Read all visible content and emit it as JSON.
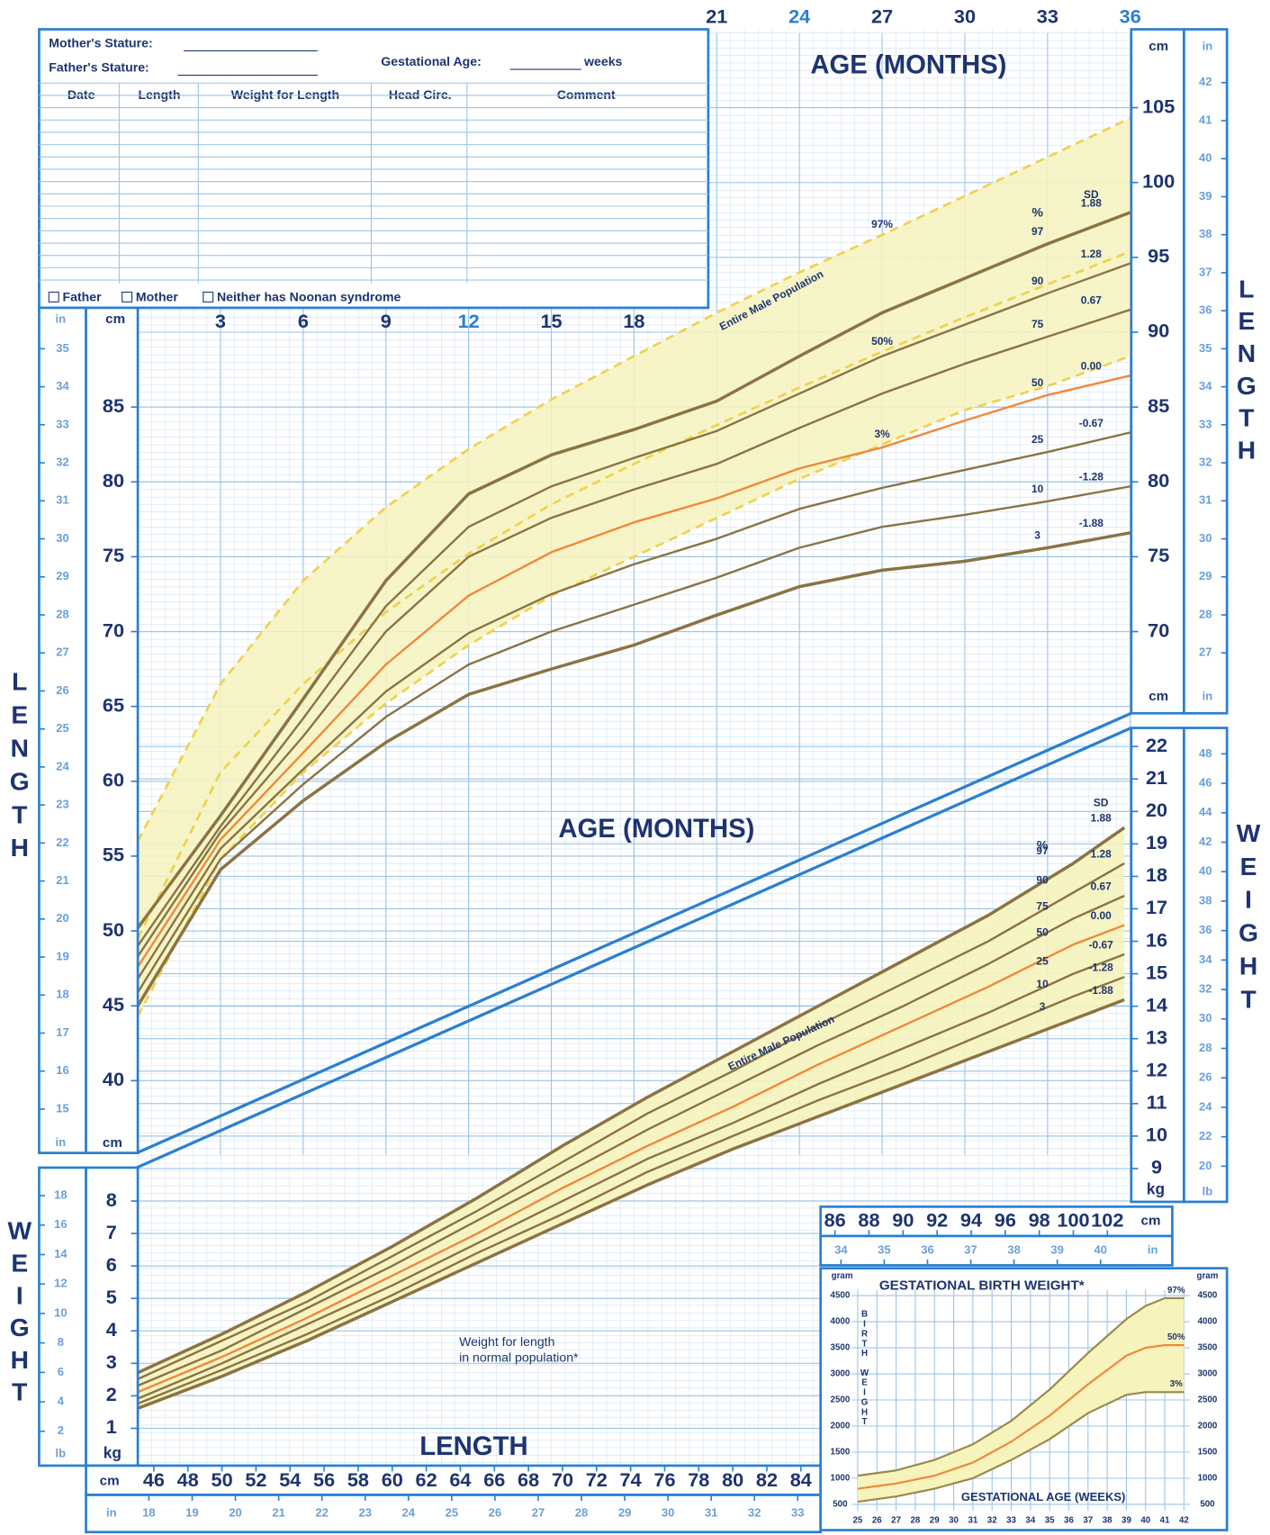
{
  "form": {
    "mothers_stature": "Mother's Stature:",
    "fathers_stature": "Father's Stature:",
    "gestational_age": "Gestational Age:",
    "weeks": "weeks",
    "columns": [
      "Date",
      "Length",
      "Weight for Length",
      "Head Circ.",
      "Comment"
    ],
    "checkboxes": [
      "Father",
      "Mother",
      "Neither has Noonan syndrome"
    ]
  },
  "chart_data": [
    {
      "type": "line",
      "x_label": "AGE (MONTHS)",
      "y_label": "LENGTH",
      "pct_heading": "%",
      "sd_heading": "SD",
      "x": [
        0,
        3,
        6,
        9,
        12,
        15,
        18,
        21,
        24,
        27,
        30,
        33,
        36
      ],
      "xlim": [
        0,
        36
      ],
      "xticks": [
        3,
        6,
        9,
        12,
        15,
        18,
        21,
        24,
        27,
        30,
        33,
        36
      ],
      "ylim": [
        35,
        110
      ],
      "yticks_left": [
        40,
        45,
        50,
        55,
        60,
        65,
        70,
        75,
        80,
        85
      ],
      "yticks_right": [
        70,
        75,
        80,
        85,
        90,
        95,
        100,
        105
      ],
      "y_unit": "cm",
      "y2_unit": "in",
      "y2lim": [
        13.78,
        43.31
      ],
      "y2ticks_left": [
        15,
        16,
        17,
        18,
        19,
        20,
        21,
        22,
        23,
        24,
        25,
        26,
        27,
        28,
        29,
        30,
        31,
        32,
        33,
        34,
        35
      ],
      "y2ticks_right": [
        27,
        28,
        29,
        30,
        31,
        32,
        33,
        34,
        35,
        36,
        37,
        38,
        39,
        40,
        41,
        42
      ],
      "series": [
        {
          "name": "97",
          "sd": "1.88",
          "color": "#8b7342",
          "values": [
            50.2,
            57.7,
            65.5,
            73.4,
            79.2,
            81.8,
            83.5,
            85.4,
            88.4,
            91.3,
            93.6,
            95.9,
            98.0
          ]
        },
        {
          "name": "90",
          "sd": "1.28",
          "color": "#8b7342",
          "values": [
            49.0,
            57.0,
            64.2,
            71.7,
            77.0,
            79.7,
            81.6,
            83.4,
            85.9,
            88.4,
            90.5,
            92.6,
            94.6
          ]
        },
        {
          "name": "75",
          "sd": "0.67",
          "color": "#8b7342",
          "values": [
            48.3,
            56.6,
            63.0,
            70.0,
            75.0,
            77.6,
            79.5,
            81.2,
            83.6,
            85.9,
            87.9,
            89.7,
            91.5
          ]
        },
        {
          "name": "50",
          "sd": "0.00",
          "color": "#f0883a",
          "values": [
            47.6,
            56.1,
            61.9,
            67.8,
            72.4,
            75.3,
            77.3,
            78.9,
            80.9,
            82.3,
            84.1,
            85.8,
            87.1
          ]
        },
        {
          "name": "25",
          "sd": "-0.67",
          "color": "#8b7342",
          "values": [
            46.8,
            55.5,
            60.8,
            66.0,
            69.9,
            72.5,
            74.5,
            76.2,
            78.2,
            79.6,
            80.8,
            82.0,
            83.3
          ]
        },
        {
          "name": "10",
          "sd": "-1.28",
          "color": "#8b7342",
          "values": [
            45.9,
            54.8,
            59.8,
            64.3,
            67.8,
            70.0,
            71.8,
            73.6,
            75.6,
            77.0,
            77.8,
            78.7,
            79.7
          ]
        },
        {
          "name": "3",
          "sd": "-1.88",
          "color": "#8b7342",
          "values": [
            45.0,
            54.1,
            58.7,
            62.6,
            65.8,
            67.5,
            69.1,
            71.1,
            73.0,
            74.1,
            74.7,
            75.6,
            76.6
          ]
        }
      ],
      "reference": {
        "name": "Entire Male Population",
        "color": "#efd24e",
        "fill": "#f6f3bd",
        "series": [
          {
            "name": "97%",
            "values": [
              56.0,
              66.5,
              73.4,
              78.3,
              82.2,
              85.5,
              88.4,
              91.3,
              94.0,
              96.5,
              99.1,
              101.7,
              104.3
            ]
          },
          {
            "name": "50%",
            "values": [
              49.5,
              60.6,
              66.5,
              71.3,
              75.2,
              78.5,
              81.2,
              83.8,
              86.3,
              88.7,
              91.0,
              93.2,
              95.4
            ]
          },
          {
            "name": "3%",
            "values": [
              44.3,
              54.8,
              60.6,
              65.2,
              69.1,
              72.4,
              75.0,
              77.6,
              80.2,
              82.5,
              84.8,
              86.4,
              88.4
            ]
          }
        ]
      }
    },
    {
      "type": "line",
      "x_label": "LENGTH",
      "y_label": "WEIGHT",
      "pct_heading": "%",
      "sd_heading": "SD",
      "annotation": [
        "Weight for length",
        "in normal population*"
      ],
      "band_label": "Entire Male Population",
      "fill": "#f6f3bd",
      "x": [
        45,
        50,
        55,
        60,
        65,
        70,
        75,
        80,
        85,
        90,
        95,
        100,
        103
      ],
      "xlim": [
        45,
        103.4
      ],
      "xticks_bottom": [
        46,
        48,
        50,
        52,
        54,
        56,
        58,
        60,
        62,
        64,
        66,
        68,
        70,
        72,
        74,
        76,
        78,
        80,
        82,
        84
      ],
      "xticks_top": [
        86,
        88,
        90,
        92,
        94,
        96,
        98,
        100,
        102
      ],
      "x_unit": "cm",
      "x2_unit": "in",
      "x2lim": [
        17.72,
        40.71
      ],
      "x2ticks_bottom": [
        18,
        19,
        20,
        21,
        22,
        23,
        24,
        25,
        26,
        27,
        28,
        29,
        30,
        31,
        32,
        33
      ],
      "x2ticks_top": [
        34,
        35,
        36,
        37,
        38,
        39,
        40
      ],
      "ylim": [
        0,
        22
      ],
      "yticks_left": [
        1,
        2,
        3,
        4,
        5,
        6,
        7,
        8
      ],
      "yticks_right": [
        9,
        10,
        11,
        12,
        13,
        14,
        15,
        16,
        17,
        18,
        19,
        20,
        21,
        22
      ],
      "y_unit": "kg",
      "y2_unit": "lb",
      "y2lim": [
        0,
        48.5
      ],
      "y2ticks_left": [
        2,
        4,
        6,
        8,
        10,
        12,
        14,
        16,
        18
      ],
      "y2ticks_right": [
        20,
        22,
        24,
        26,
        28,
        30,
        32,
        34,
        36,
        38,
        40,
        42,
        44,
        46,
        48
      ],
      "series": [
        {
          "name": "97",
          "sd": "1.88",
          "color": "#8b7342",
          "values": [
            2.7,
            3.9,
            5.2,
            6.6,
            8.1,
            9.7,
            11.2,
            12.6,
            14.0,
            15.4,
            16.8,
            18.4,
            19.5
          ]
        },
        {
          "name": "90",
          "sd": "1.28",
          "color": "#8b7342",
          "values": [
            2.5,
            3.7,
            4.9,
            6.3,
            7.7,
            9.2,
            10.7,
            12.0,
            13.4,
            14.7,
            16.0,
            17.5,
            18.4
          ]
        },
        {
          "name": "75",
          "sd": "0.67",
          "color": "#8b7342",
          "values": [
            2.3,
            3.4,
            4.7,
            6.0,
            7.4,
            8.8,
            10.2,
            11.5,
            12.8,
            14.0,
            15.3,
            16.7,
            17.4
          ]
        },
        {
          "name": "50",
          "sd": "0.00",
          "color": "#f0883a",
          "values": [
            2.1,
            3.2,
            4.4,
            5.7,
            7.0,
            8.4,
            9.7,
            10.9,
            12.2,
            13.4,
            14.6,
            15.9,
            16.5
          ]
        },
        {
          "name": "25",
          "sd": "-0.67",
          "color": "#8b7342",
          "values": [
            1.9,
            3.0,
            4.2,
            5.4,
            6.7,
            8.0,
            9.3,
            10.4,
            11.6,
            12.7,
            13.8,
            15.0,
            15.6
          ]
        },
        {
          "name": "10",
          "sd": "-1.28",
          "color": "#8b7342",
          "values": [
            1.75,
            2.8,
            3.9,
            5.1,
            6.4,
            7.6,
            8.9,
            10.0,
            11.1,
            12.1,
            13.2,
            14.3,
            14.9
          ]
        },
        {
          "name": "3",
          "sd": "-1.88",
          "color": "#8b7342",
          "values": [
            1.6,
            2.6,
            3.7,
            4.9,
            6.1,
            7.3,
            8.5,
            9.6,
            10.6,
            11.6,
            12.6,
            13.6,
            14.2
          ]
        }
      ]
    },
    {
      "type": "line",
      "title": "GESTATIONAL BIRTH WEIGHT*",
      "x_label": "GESTATIONAL AGE (WEEKS)",
      "y_label": "BIRTH WEIGHT",
      "y_unit": "gram",
      "fill": "#f6f3bd",
      "x": [
        25,
        27,
        29,
        31,
        33,
        35,
        37,
        39,
        40,
        41,
        42
      ],
      "xlim": [
        25,
        42
      ],
      "xticks": [
        25,
        26,
        27,
        28,
        29,
        30,
        31,
        32,
        33,
        34,
        35,
        36,
        37,
        38,
        39,
        40,
        41,
        42
      ],
      "ylim": [
        250,
        4750
      ],
      "yticks": [
        500,
        1000,
        1500,
        2000,
        2500,
        3000,
        3500,
        4000,
        4500
      ],
      "series": [
        {
          "name": "97%",
          "color": "#9a8a4a",
          "values": [
            1050,
            1150,
            1350,
            1650,
            2100,
            2700,
            3400,
            4050,
            4300,
            4450,
            4450
          ]
        },
        {
          "name": "50%",
          "color": "#f0883a",
          "values": [
            800,
            900,
            1050,
            1300,
            1700,
            2200,
            2800,
            3350,
            3500,
            3550,
            3550
          ]
        },
        {
          "name": "3%",
          "color": "#9a8a4a",
          "values": [
            550,
            650,
            800,
            1000,
            1350,
            1750,
            2250,
            2600,
            2650,
            2650,
            2650
          ]
        }
      ]
    }
  ]
}
